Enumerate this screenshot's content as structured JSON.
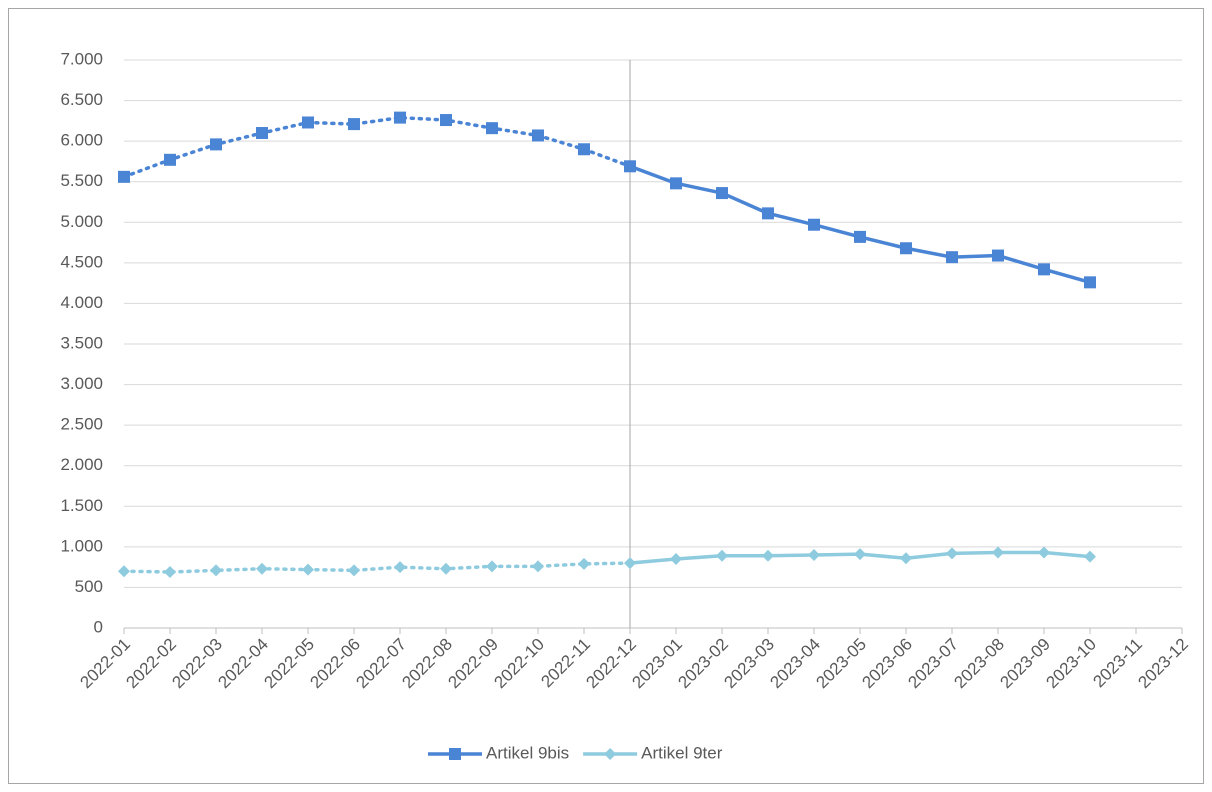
{
  "chart_data": {
    "type": "line",
    "categories": [
      "2022-01",
      "2022-02",
      "2022-03",
      "2022-04",
      "2022-05",
      "2022-06",
      "2022-07",
      "2022-08",
      "2022-09",
      "2022-10",
      "2022-11",
      "2022-12",
      "2023-01",
      "2023-02",
      "2023-03",
      "2023-04",
      "2023-05",
      "2023-06",
      "2023-07",
      "2023-08",
      "2023-09",
      "2023-10",
      "2023-11",
      "2023-12"
    ],
    "series": [
      {
        "name": "Artikel 9bis",
        "color": "#4a84d4",
        "marker": "square",
        "values": [
          5560,
          5770,
          5960,
          6100,
          6230,
          6210,
          6290,
          6260,
          6160,
          6070,
          5900,
          5690,
          5480,
          5360,
          5110,
          4970,
          4820,
          4680,
          4570,
          4590,
          4420,
          4260,
          null,
          null
        ]
      },
      {
        "name": "Artikel 9ter",
        "color": "#8ecbdf",
        "marker": "diamond",
        "values": [
          700,
          690,
          710,
          730,
          720,
          710,
          750,
          730,
          760,
          760,
          790,
          800,
          850,
          890,
          890,
          900,
          910,
          860,
          920,
          930,
          930,
          880,
          null,
          null
        ]
      }
    ],
    "dotted_through": "2022-12",
    "vline": "2022-12",
    "ylim": [
      0,
      7000
    ],
    "yticks": [
      0,
      500,
      {
        "value": 1000,
        "label": "1.000"
      },
      {
        "value": 1500,
        "label": "1.500"
      },
      {
        "value": 2000,
        "label": "2.000"
      },
      {
        "value": 2500,
        "label": "2.500"
      },
      {
        "value": 3000,
        "label": "3.000"
      },
      {
        "value": 3500,
        "label": "3.500"
      },
      {
        "value": 4000,
        "label": "4.000"
      },
      {
        "value": 4500,
        "label": "4.500"
      },
      {
        "value": 5000,
        "label": "5.000"
      },
      {
        "value": 5500,
        "label": "5.500"
      },
      {
        "value": 6000,
        "label": "6.000"
      },
      {
        "value": 6500,
        "label": "6.500"
      },
      {
        "value": 7000,
        "label": "7.000"
      }
    ],
    "grid": true,
    "legend": "bottom"
  }
}
